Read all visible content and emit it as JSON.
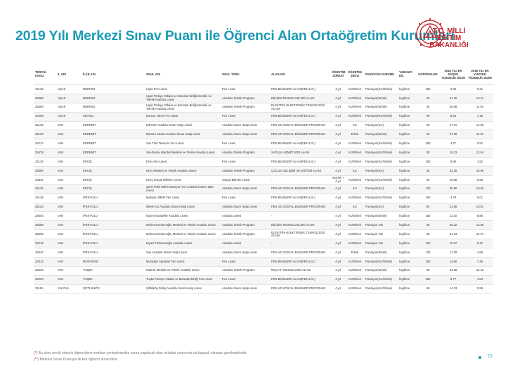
{
  "page": {
    "title": "2019 Yılı Merkezi Sınav Puanı ile Öğrenci Alan Ortaöğretim Kurumları",
    "page_number": "73",
    "accent": "#1c9bb5",
    "brand_red": "#c0272d"
  },
  "logo": {
    "line1": "T.C. MİLLİ EĞİTİM",
    "line2": "BAKANLIĞI",
    "emblem": "meb-emblem-icon"
  },
  "table": {
    "headers": [
      "TERCİH KODU",
      "İL ADI",
      "İLÇE ADI",
      "OKUL ADI",
      "OKUL TÜRÜ",
      "ALAN ADI",
      "ÖĞRETİM SÜRESİ",
      "ÖĞRETİM ŞEKLİ",
      "PANSİYON DURUMU",
      "YABANCI DİL",
      "KONTENJANI",
      "2018 YILI EN DÜŞÜK YÜZDELİK DİLİM",
      "2018 YILI EN YÜKSEK YÜZDELİK DİLİM"
    ],
    "rows": [
      [
        "24133",
        "UŞAK",
        "MERKEZ",
        "Uşak Fen Lisesi",
        "Fen Lisesi",
        "FEN BİLİMLERİ ALANI(FEN LİS.)",
        "4 yıl",
        "Kız/Erkek",
        "Pansiyon(Kız/Erkek)",
        "İngilizce",
        "150",
        "2.96",
        "0.21"
      ],
      [
        "25358",
        "UŞAK",
        "MERKEZ",
        "Uşak Türkiye Odalar ve Borsalar Birliği Mesleki ve Teknik Anadolu Lisesi",
        "Anadolu Teknik Programı",
        "BİLİŞİM TEKNOLOJİLERİ ALANI",
        "4 yıl",
        "Kız/Erkek",
        "Pansiyon(Erkek)",
        "İngilizce",
        "30",
        "31.20",
        "13.41"
      ],
      [
        "25363",
        "UŞAK",
        "MERKEZ",
        "Uşak Türkiye Odalar ve Borsalar Birliği Mesleki ve Teknik Anadolu Lisesi",
        "Anadolu Teknik Programı",
        "ELEKTRİK-ELEKTRONİK TEKNOLOJİSİ ALANI",
        "4 yıl",
        "Kız/Erkek",
        "Pansiyon(Erkek)",
        "İngilizce",
        "30",
        "25.58",
        "11.92"
      ],
      [
        "24208",
        "UŞAK",
        "SİVASLI",
        "Dursun Yalım Fen Lisesi",
        "Fen Lisesi",
        "FEN BİLİMLERİ ALANI(FEN LİS.)",
        "4 yıl",
        "Kız/Erkek",
        "Pansiyon(Kız/Erkek)",
        "İngilizce",
        "90",
        "8.53",
        "1.18"
      ],
      [
        "25135",
        "VAN",
        "EDREMİT",
        "Edremit Anadolu İmam Hatip Lisesi",
        "Anadolu İmam Hatip Lisesi",
        "FEN VE SOSYAL BİLİMLER PROGRAMI",
        "4 yıl",
        "Kız",
        "Pansiyon(Kız)",
        "İngilizce",
        "60",
        "27.61",
        "14.09"
      ],
      [
        "25130",
        "VAN",
        "EDREMİT",
        "Mizancı Murat Anadolu İmam Hatip Lisesi",
        "Anadolu İmam Hatip Lisesi",
        "FEN VE SOSYAL BİLİMLER PROGRAMI",
        "4 yıl",
        "Erkek",
        "Pansiyon(Erkek)",
        "İngilizce",
        "60",
        "27.28",
        "11.31"
      ],
      [
        "24210",
        "VAN",
        "EDREMİT",
        "Van Türk Telekom Fen Lisesi",
        "Fen Lisesi",
        "FEN BİLİMLERİ ALANI(FEN LİS.)",
        "4 yıl",
        "Kız/Erkek",
        "Pansiyon(Kız/Erkek)",
        "İngilizce",
        "150",
        "4.47",
        "0.52"
      ],
      [
        "25478",
        "VAN",
        "EDREMİT",
        "Van-Borsa İstanbul Mesleki ve Teknik Anadolu Lisesi",
        "Anadolu Teknik Programı",
        "SAĞLIK HİZMETLERİ ALANI",
        "4 yıl",
        "Kız/Erkek",
        "Pansiyon(Kız/Erkek)",
        "İngilizce",
        "30",
        "16.23",
        "12.04"
      ],
      [
        "24134",
        "VAN",
        "ERCİŞ",
        "Erciş Fen Lisesi",
        "Fen Lisesi",
        "FEN BİLİMLERİ ALANI(FEN LİS.)",
        "4 yıl",
        "Kız/Erkek",
        "Pansiyon(Kız/Erkek)",
        "İngilizce",
        "150",
        "8.96",
        "1.52"
      ],
      [
        "25594",
        "VAN",
        "ERCİŞ",
        "Erciş Mesleki ve Teknik Anadolu Lisesi",
        "Anadolu Teknik Programı",
        "ÇOCUK GELİŞİMİ VE EĞİTİMİ ALANI",
        "4 yıl",
        "Kız",
        "Pansiyon(Kız)",
        "İngilizce",
        "30",
        "33.35",
        "18.99"
      ],
      [
        "23842",
        "VAN",
        "ERCİŞ",
        "Erciş Sosyal Bilimler Lisesi",
        "Sosyal Bilimler Lisesi",
        "-",
        "Hazırlık + 4 yıl",
        "Kız/Erkek",
        "Pansiyon(Kız/Erkek)",
        "İngilizce",
        "90",
        "18.88",
        "8.55"
      ],
      [
        "25125",
        "VAN",
        "ERCİŞ",
        "Şehit Polis Halil Hamuryeri Kız Anadolu İmam Hatip Lisesi",
        "Anadolu İmam Hatip Lisesi",
        "FEN VE SOSYAL BİLİMLER PROGRAMI",
        "4 yıl",
        "Kız",
        "Pansiyon(Kız)",
        "İngilizce",
        "120",
        "30.56",
        "10.93"
      ],
      [
        "24135",
        "VAN",
        "İPEKYOLU",
        "İpekyolu İMKB Fen Lisesi",
        "Fen Lisesi",
        "FEN BİLİMLERİ ALANI(FEN LİS.)",
        "4 yıl",
        "Kız/Erkek",
        "Pansiyon(Kız/Erkek)",
        "İngilizce",
        "150",
        "4.79",
        "0.01"
      ],
      [
        "25120",
        "VAN",
        "İPEKYOLU",
        "İskele Kız Anadolu İmam Hatip Lisesi",
        "Anadolu İmam Hatip Lisesi",
        "FEN VE SOSYAL BİLİMLER PROGRAMI",
        "4 yıl",
        "Kız",
        "Pansiyon(Kız)",
        "İngilizce",
        "60",
        "21.65",
        "10.91"
      ],
      [
        "24804",
        "VAN",
        "İPEKYOLU",
        "Kazım Karabekir Anadolu Lisesi",
        "Anadolu Lisesi",
        "-",
        "4 yıl",
        "Kız/Erkek",
        "Pansiyon(Erkek)",
        "İngilizce",
        "150",
        "13.10",
        "8.86"
      ],
      [
        "25589",
        "VAN",
        "İPEKYOLU",
        "Mehmet Erdemoğlu Mesleki ve Teknik Anadolu Lisesi",
        "Anadolu Teknik Programı",
        "BİLİŞİM TEKNOLOJİLERİ ALANI",
        "4 yıl",
        "Kız/Erkek",
        "Pansiyon Yok",
        "İngilizce",
        "30",
        "25.32",
        "13.68"
      ],
      [
        "25605",
        "VAN",
        "İPEKYOLU",
        "Mehmet Erdemoğlu Mesleki ve Teknik Anadolu Lisesi",
        "Anadolu Teknik Programı",
        "ELEKTRİK-ELEKTRONİK TEKNOLOJİSİ ALANI",
        "4 yıl",
        "Kız/Erkek",
        "Pansiyon Yok",
        "İngilizce",
        "30",
        "31.54",
        "21.47"
      ],
      [
        "24215",
        "VAN",
        "İPEKYOLU",
        "Niyazi Türkmenoğlu Anadolu Lisesi",
        "Anadolu Lisesi",
        "-",
        "4 yıl",
        "Kız/Erkek",
        "Pansiyon Yok",
        "İngilizce",
        "120",
        "10.37",
        "5.22"
      ],
      [
        "25647",
        "VAN",
        "İPEKYOLU",
        "Van Anadolu İmam Hatip Lisesi",
        "Anadolu İmam Hatip Lisesi",
        "FEN VE SOSYAL BİLİMLER PROGRAMI",
        "4 yıl",
        "Erkek",
        "Pansiyon(Erkek)",
        "İngilizce",
        "120",
        "17.28",
        "4.86"
      ],
      [
        "24313",
        "VAN",
        "MURADİYE",
        "Muradiye Alpaslan Fen Lisesi",
        "Fen Lisesi",
        "FEN BİLİMLERİ ALANI(FEN LİS.)",
        "4 yıl",
        "Kız/Erkek",
        "Pansiyon(Kız/Erkek)",
        "İngilizce",
        "150",
        "14.60",
        "7.45"
      ],
      [
        "25630",
        "VAN",
        "TUŞBA",
        "Kalecik Mesleki ve Teknik Anadolu Lisesi",
        "Anadolu Teknik Programı",
        "İNŞAAT TEKNOLOJİSİ ALANI",
        "4 yıl",
        "Kız/Erkek",
        "Pansiyon(Erkek)",
        "İngilizce",
        "30",
        "33.86",
        "22.16"
      ],
      [
        "24220",
        "VAN",
        "TUŞBA",
        "Tuşba Türkiye Odalar ve Borsalar Birliği Fen Lisesi",
        "Fen Lisesi",
        "FEN BİLİMLERİ ALANI(FEN LİS.)",
        "4 yıl",
        "Kız/Erkek",
        "Pansiyon(Kız/Erkek)",
        "İngilizce",
        "150",
        "6.77",
        "4.84"
      ],
      [
        "25115",
        "YALOVA",
        "ÇİFTLİKKÖY",
        "Çiftlikköy Diriliş Anadolu İmam Hatip Lisesi",
        "Anadolu İmam Hatip Lisesi",
        "FEN VE SOSYAL BİLİMLER PROGRAMI",
        "4 yıl",
        "Kız/Erkek",
        "Pansiyon(Kız/Erkek)",
        "İngilizce",
        "90",
        "14.13",
        "0.89"
      ]
    ]
  },
  "footnotes": [
    {
      "mark": "(*)",
      "text": "Bu alanı tercih edecek öğrencilerin merkezi yerleştirmeden sonra yapılacak olan mülakat sınavında da başarılı olmaları gerekmektedir."
    },
    {
      "mark": "(**)",
      "text": "Merkezi Sınav Puanıyla ilk kez öğrenci alınacaktır."
    }
  ]
}
